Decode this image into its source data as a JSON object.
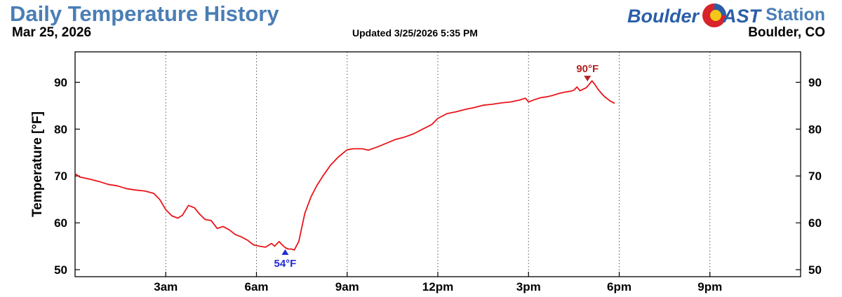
{
  "header": {
    "title": "Daily Temperature History",
    "date": "Mar 25, 2026",
    "updated": "Updated 3/25/2026 5:35 PM",
    "brand_left": "Boulder",
    "brand_right": "AST",
    "station": "Station",
    "location": "Boulder, CO"
  },
  "colors": {
    "title": "#4a7eb5",
    "line": "#e8151b",
    "max_marker": "#b22222",
    "min_marker": "#1f2bd1"
  },
  "chart_data": {
    "type": "line",
    "ylabel": "Temperature [°F]",
    "xlim": [
      0,
      24
    ],
    "ylim": [
      48.5,
      96.5
    ],
    "yticks": [
      50,
      60,
      70,
      80,
      90
    ],
    "xticks": [
      3,
      6,
      9,
      12,
      15,
      18,
      21
    ],
    "xtick_labels": [
      "3am",
      "6am",
      "9am",
      "12pm",
      "3pm",
      "6pm",
      "9pm"
    ],
    "grid": "vertical dotted",
    "series": [
      {
        "x": [
          0.0,
          0.15,
          0.5,
          0.8,
          1.1,
          1.4,
          1.7,
          2.0,
          2.3,
          2.6,
          2.8,
          3.0,
          3.2,
          3.4,
          3.55,
          3.75,
          3.95,
          4.1,
          4.3,
          4.5,
          4.7,
          4.9,
          5.1,
          5.3,
          5.5,
          5.7,
          5.9,
          6.1,
          6.3,
          6.5,
          6.6,
          6.75,
          6.85,
          6.95,
          7.05,
          7.15,
          7.25,
          7.4,
          7.6,
          7.8,
          8.0,
          8.2,
          8.45,
          8.7,
          9.0,
          9.2,
          9.5,
          9.7,
          10.0,
          10.3,
          10.6,
          10.9,
          11.2,
          11.5,
          11.8,
          12.0,
          12.3,
          12.6,
          12.9,
          13.2,
          13.5,
          13.8,
          14.1,
          14.4,
          14.7,
          14.9,
          15.0,
          15.2,
          15.4,
          15.6,
          15.8,
          16.0,
          16.2,
          16.4,
          16.5,
          16.6,
          16.7,
          16.9,
          17.0,
          17.1,
          17.2,
          17.3,
          17.5,
          17.7,
          17.85
        ],
        "y": [
          70.5,
          69.8,
          69.3,
          68.8,
          68.2,
          67.9,
          67.3,
          67.0,
          66.8,
          66.3,
          65.0,
          62.8,
          61.5,
          61.0,
          61.6,
          63.7,
          63.2,
          62.0,
          60.7,
          60.5,
          58.8,
          59.2,
          58.5,
          57.5,
          57.0,
          56.3,
          55.3,
          55.0,
          54.8,
          55.6,
          55.0,
          56.0,
          55.3,
          54.7,
          54.4,
          54.4,
          54.2,
          56.0,
          62.0,
          65.5,
          68.0,
          70.0,
          72.3,
          74.0,
          75.6,
          75.8,
          75.8,
          75.5,
          76.2,
          77.0,
          77.8,
          78.3,
          79.0,
          80.0,
          81.0,
          82.3,
          83.3,
          83.7,
          84.2,
          84.6,
          85.1,
          85.3,
          85.6,
          85.8,
          86.2,
          86.6,
          85.8,
          86.3,
          86.7,
          86.9,
          87.2,
          87.6,
          87.9,
          88.1,
          88.3,
          89.0,
          88.2,
          88.8,
          89.5,
          90.3,
          89.5,
          88.5,
          87.0,
          86.0,
          85.5
        ]
      }
    ],
    "annotations": [
      {
        "label": "90°F",
        "x": 16.95,
        "y": 90.5,
        "kind": "max"
      },
      {
        "label": "54°F",
        "x": 6.95,
        "y": 54.2,
        "kind": "min"
      }
    ]
  }
}
